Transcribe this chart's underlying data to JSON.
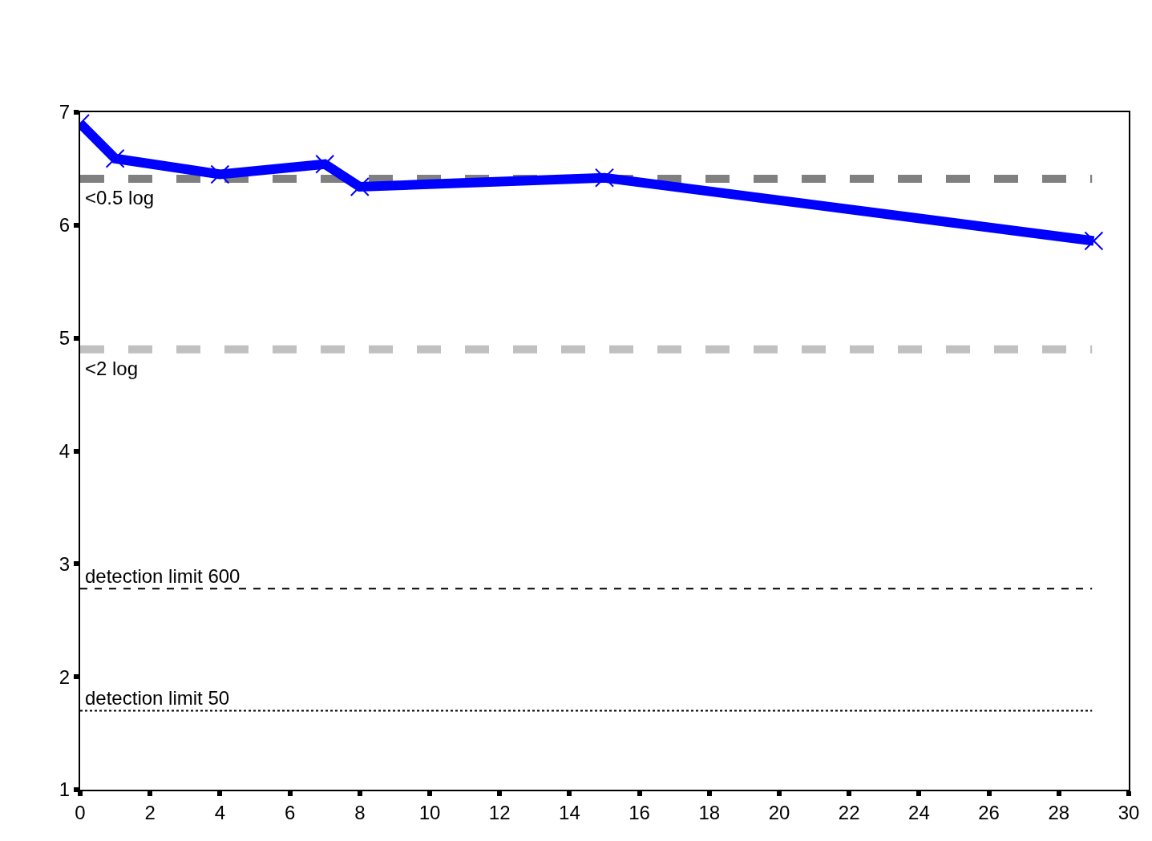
{
  "chart_data": {
    "type": "line",
    "x": [
      0,
      1,
      4,
      7,
      8,
      15,
      29
    ],
    "series": [
      {
        "color": "#0000ff",
        "values": [
          6.9,
          6.59,
          6.45,
          6.54,
          6.34,
          6.42,
          5.86
        ]
      }
    ],
    "xlim": [
      0,
      30
    ],
    "xticks": [
      0,
      2,
      4,
      6,
      8,
      10,
      12,
      14,
      16,
      18,
      20,
      22,
      24,
      26,
      28,
      30
    ],
    "ylim": [
      1,
      7
    ],
    "yticks": [
      1,
      2,
      3,
      4,
      5,
      6,
      7
    ],
    "marker": "cross",
    "line_style": "solid",
    "ref_lines": [
      {
        "axis": "y",
        "value": 6.41,
        "label": "<0.5 log",
        "color": "#808080",
        "line_style": "dashed"
      },
      {
        "axis": "y",
        "value": 4.9,
        "label": "<2 log",
        "color": "#c0c0c0",
        "line_style": "dashed"
      },
      {
        "axis": "y",
        "value": 2.78,
        "label": "detection limit 600",
        "color": "#000000",
        "line_style": "dashed"
      },
      {
        "axis": "y",
        "value": 1.7,
        "label": "detection limit 50",
        "color": "#000000",
        "line_style": "dotted"
      }
    ]
  }
}
